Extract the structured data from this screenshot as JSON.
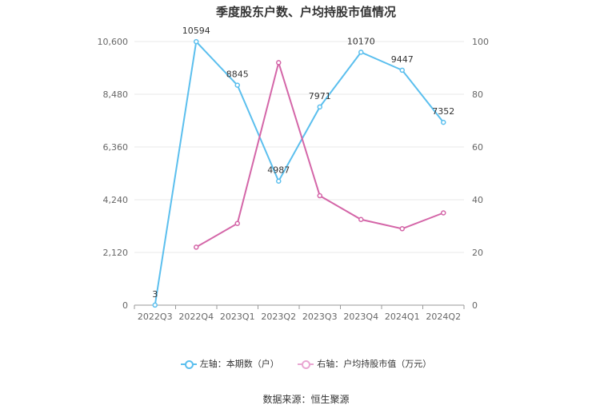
{
  "chart_data": {
    "type": "line",
    "title": "季度股东户数、户均持股市值情况",
    "categories": [
      "2022Q3",
      "2022Q4",
      "2023Q1",
      "2023Q2",
      "2023Q3",
      "2023Q4",
      "2024Q1",
      "2024Q2"
    ],
    "y_left": {
      "ticks": [
        "0",
        "2,120",
        "4,240",
        "6,360",
        "8,480",
        "10,600"
      ],
      "ylim": [
        0,
        10600
      ]
    },
    "y_right": {
      "ticks": [
        "0",
        "20",
        "40",
        "60",
        "80",
        "100"
      ],
      "ylim": [
        0,
        100
      ]
    },
    "series": [
      {
        "name": "左轴：本期数（户）",
        "axis": "left",
        "color": "#5bbfee",
        "values": [
          3,
          10594,
          8845,
          4987,
          7971,
          10170,
          9447,
          7352
        ],
        "labels": [
          "3",
          "10594",
          "8845",
          "4987",
          "7971",
          "10170",
          "9447",
          "7352"
        ]
      },
      {
        "name": "右轴：户均持股市值（万元）",
        "axis": "right",
        "color": "#d466a8",
        "values": [
          null,
          22.0,
          31.0,
          92.0,
          41.5,
          32.5,
          29.0,
          35.0
        ]
      }
    ],
    "grid": true,
    "legend": "bottom"
  },
  "source": "数据来源：恒生聚源"
}
